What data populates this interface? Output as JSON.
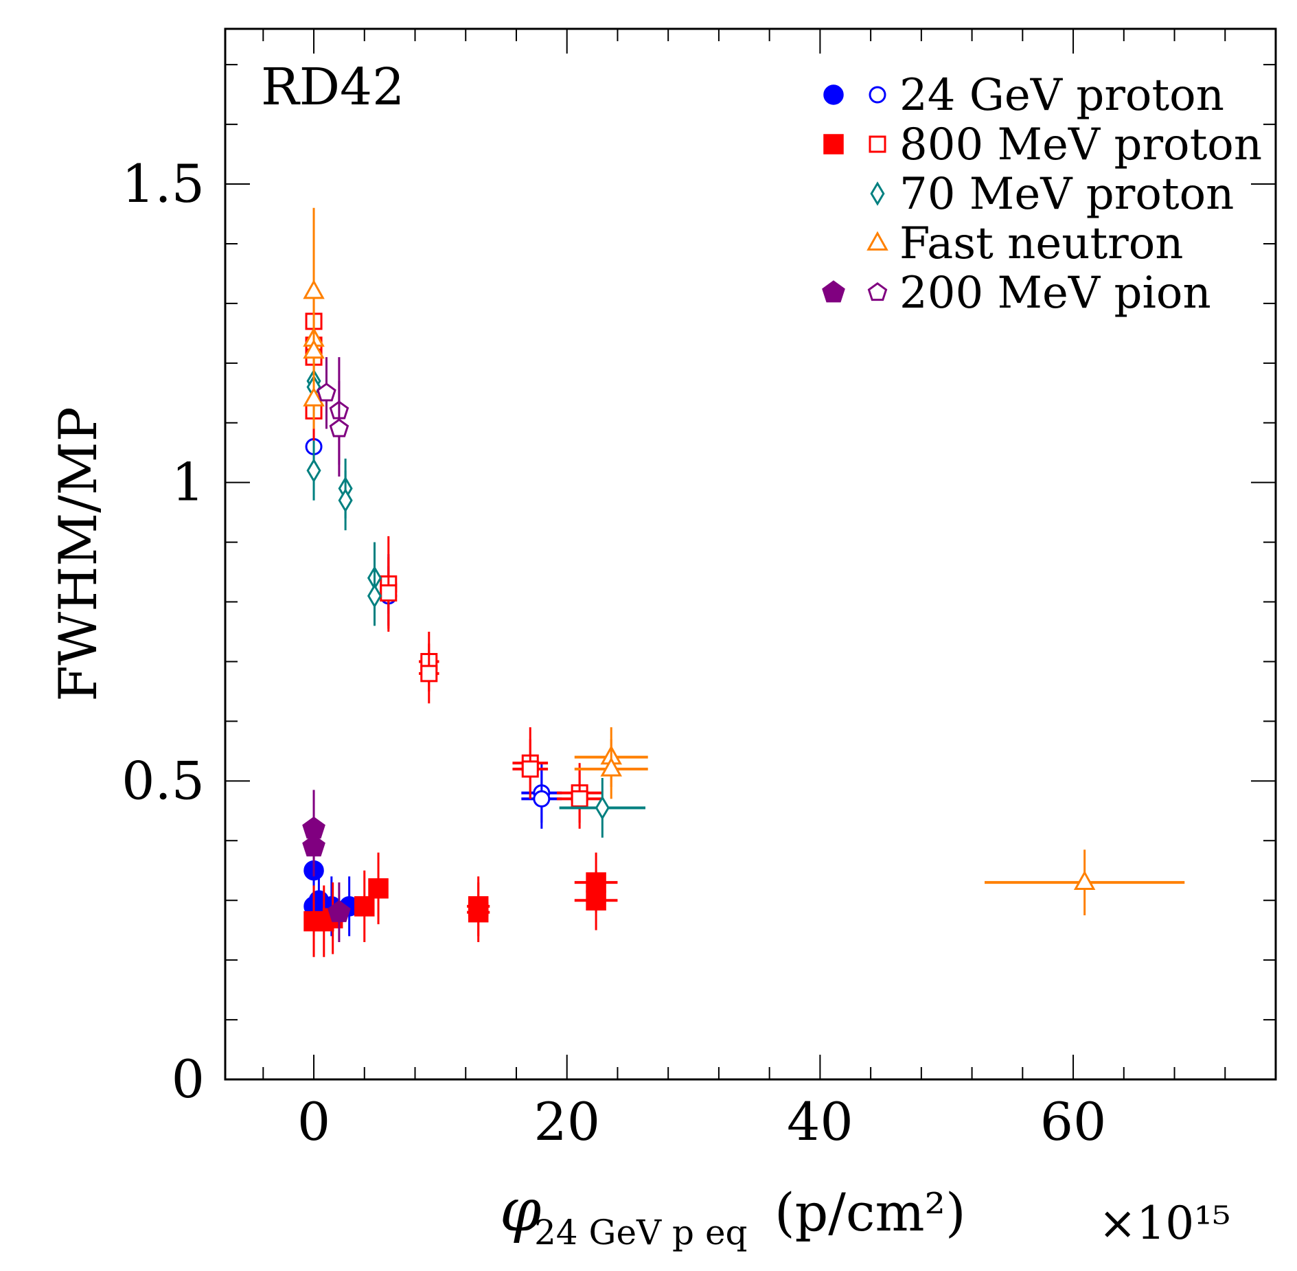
{
  "chart_data": {
    "type": "scatter",
    "experiment_label": "RD42",
    "ylabel": "FWHM/MP",
    "xlabel": {
      "symbol": "φ",
      "subscript": "24 GeV p eq",
      "unit": "(p/cm²)",
      "multiplier": "×10¹⁵"
    },
    "xlim": [
      -7,
      76
    ],
    "ylim": [
      0,
      1.76
    ],
    "x_ticks": [
      0,
      20,
      40,
      60
    ],
    "x_tick_labels": [
      "0",
      "20",
      "40",
      "60"
    ],
    "y_ticks": [
      0,
      0.5,
      1,
      1.5
    ],
    "y_tick_labels": [
      "0",
      "0.5",
      "1",
      "1.5"
    ],
    "x_minor_step": 4,
    "y_minor_step": 0.1,
    "grid": false,
    "legend_position": "top-right",
    "legend": [
      {
        "label": "24 GeV proton",
        "color": "#0000ff",
        "filled_marker": "circle",
        "open_marker": "circle"
      },
      {
        "label": "800 MeV proton",
        "color": "#ff0000",
        "filled_marker": "square",
        "open_marker": "square"
      },
      {
        "label": "70 MeV proton",
        "color": "#008080",
        "filled_marker": null,
        "open_marker": "diamond"
      },
      {
        "label": "Fast neutron",
        "color": "#ff8000",
        "filled_marker": null,
        "open_marker": "triangle"
      },
      {
        "label": "200 MeV pion",
        "color": "#800080",
        "filled_marker": "pentagon",
        "open_marker": "pentagon"
      }
    ],
    "series": [
      {
        "name": "24 GeV proton (filled)",
        "color": "#0000ff",
        "marker": "circle",
        "filled": true,
        "points": [
          {
            "x": 0,
            "y": 0.35,
            "yerr": 0.05,
            "xerr": 0
          },
          {
            "x": 0,
            "y": 0.29,
            "yerr": 0.05,
            "xerr": 0
          },
          {
            "x": 0.4,
            "y": 0.3,
            "yerr": 0.05,
            "xerr": 0
          },
          {
            "x": 1.4,
            "y": 0.29,
            "yerr": 0.05,
            "xerr": 0
          },
          {
            "x": 2.8,
            "y": 0.29,
            "yerr": 0.05,
            "xerr": 0
          }
        ]
      },
      {
        "name": "24 GeV proton (open)",
        "color": "#0000ff",
        "marker": "circle",
        "filled": false,
        "points": [
          {
            "x": 0,
            "y": 1.06,
            "yerr": 0.05,
            "xerr": 0
          },
          {
            "x": 5.9,
            "y": 0.83,
            "yerr": 0.05,
            "xerr": 0
          },
          {
            "x": 5.9,
            "y": 0.81,
            "yerr": 0.05,
            "xerr": 0
          },
          {
            "x": 18,
            "y": 0.48,
            "yerr": 0.05,
            "xerr": 1.6
          },
          {
            "x": 18,
            "y": 0.47,
            "yerr": 0.05,
            "xerr": 1.6
          }
        ]
      },
      {
        "name": "800 MeV proton (filled)",
        "color": "#ff0000",
        "marker": "square",
        "filled": true,
        "points": [
          {
            "x": 0,
            "y": 0.265,
            "yerr": 0.06,
            "xerr": 0
          },
          {
            "x": 0.8,
            "y": 0.265,
            "yerr": 0.06,
            "xerr": 0
          },
          {
            "x": 1.5,
            "y": 0.27,
            "yerr": 0.06,
            "xerr": 0
          },
          {
            "x": 4.0,
            "y": 0.29,
            "yerr": 0.06,
            "xerr": 0
          },
          {
            "x": 5.1,
            "y": 0.32,
            "yerr": 0.06,
            "xerr": 0
          },
          {
            "x": 13,
            "y": 0.29,
            "yerr": 0.05,
            "xerr": 0.9
          },
          {
            "x": 13,
            "y": 0.28,
            "yerr": 0.05,
            "xerr": 0.9
          },
          {
            "x": 22.3,
            "y": 0.33,
            "yerr": 0.05,
            "xerr": 1.7
          },
          {
            "x": 22.3,
            "y": 0.3,
            "yerr": 0.05,
            "xerr": 1.7
          }
        ]
      },
      {
        "name": "800 MeV proton (open)",
        "color": "#ff0000",
        "marker": "square",
        "filled": false,
        "points": [
          {
            "x": 0,
            "y": 1.27,
            "yerr": 0.05,
            "xerr": 0
          },
          {
            "x": 0,
            "y": 1.23,
            "yerr": 0.05,
            "xerr": 0
          },
          {
            "x": 0,
            "y": 1.21,
            "yerr": 0.05,
            "xerr": 0
          },
          {
            "x": 0,
            "y": 1.12,
            "yerr": 0.05,
            "xerr": 0
          },
          {
            "x": 5.9,
            "y": 0.83,
            "yerr": 0.08,
            "xerr": 0
          },
          {
            "x": 5.9,
            "y": 0.815,
            "yerr": 0.06,
            "xerr": 0
          },
          {
            "x": 9.1,
            "y": 0.7,
            "yerr": 0.05,
            "xerr": 0.8
          },
          {
            "x": 9.1,
            "y": 0.68,
            "yerr": 0.05,
            "xerr": 0.8
          },
          {
            "x": 17.1,
            "y": 0.53,
            "yerr": 0.06,
            "xerr": 1.4
          },
          {
            "x": 17.1,
            "y": 0.52,
            "yerr": 0.05,
            "xerr": 1.4
          },
          {
            "x": 21.0,
            "y": 0.48,
            "yerr": 0.05,
            "xerr": 1.8
          },
          {
            "x": 21.0,
            "y": 0.47,
            "yerr": 0.05,
            "xerr": 1.8
          }
        ]
      },
      {
        "name": "70 MeV proton",
        "color": "#008080",
        "marker": "diamond",
        "filled": false,
        "points": [
          {
            "x": 0,
            "y": 1.17,
            "yerr": 0.05,
            "xerr": 0
          },
          {
            "x": 0,
            "y": 1.16,
            "yerr": 0.05,
            "xerr": 0
          },
          {
            "x": 0,
            "y": 1.02,
            "yerr": 0.05,
            "xerr": 0
          },
          {
            "x": 2.5,
            "y": 0.99,
            "yerr": 0.05,
            "xerr": 0
          },
          {
            "x": 2.5,
            "y": 0.97,
            "yerr": 0.05,
            "xerr": 0
          },
          {
            "x": 4.8,
            "y": 0.84,
            "yerr": 0.06,
            "xerr": 0
          },
          {
            "x": 4.8,
            "y": 0.81,
            "yerr": 0.05,
            "xerr": 0
          },
          {
            "x": 22.8,
            "y": 0.455,
            "yerr": 0.05,
            "xerr": 3.4
          }
        ]
      },
      {
        "name": "Fast neutron",
        "color": "#ff8000",
        "marker": "triangle",
        "filled": false,
        "points": [
          {
            "x": 0,
            "y": 1.32,
            "yerr": 0.14,
            "xerr": 0
          },
          {
            "x": 0,
            "y": 1.24,
            "yerr": 0.05,
            "xerr": 0
          },
          {
            "x": 0,
            "y": 1.22,
            "yerr": 0.05,
            "xerr": 0
          },
          {
            "x": 0,
            "y": 1.14,
            "yerr": 0.05,
            "xerr": 0
          },
          {
            "x": 23.5,
            "y": 0.54,
            "yerr": 0.05,
            "xerr": 2.9
          },
          {
            "x": 23.5,
            "y": 0.52,
            "yerr": 0.05,
            "xerr": 2.9
          },
          {
            "x": 60.9,
            "y": 0.33,
            "yerr": 0.055,
            "xerr": 7.9
          }
        ]
      },
      {
        "name": "200 MeV pion (filled)",
        "color": "#800080",
        "marker": "pentagon",
        "filled": true,
        "points": [
          {
            "x": 0,
            "y": 0.42,
            "yerr": 0.065,
            "xerr": 0
          },
          {
            "x": 0,
            "y": 0.39,
            "yerr": 0.05,
            "xerr": 0
          },
          {
            "x": 2.0,
            "y": 0.28,
            "yerr": 0.05,
            "xerr": 0
          }
        ]
      },
      {
        "name": "200 MeV pion (open)",
        "color": "#800080",
        "marker": "pentagon",
        "filled": false,
        "points": [
          {
            "x": 1.0,
            "y": 1.15,
            "yerr": 0.06,
            "xerr": 0
          },
          {
            "x": 2.0,
            "y": 1.12,
            "yerr": 0.09,
            "xerr": 0
          },
          {
            "x": 2.0,
            "y": 1.09,
            "yerr": 0.08,
            "xerr": 0
          }
        ]
      }
    ]
  }
}
